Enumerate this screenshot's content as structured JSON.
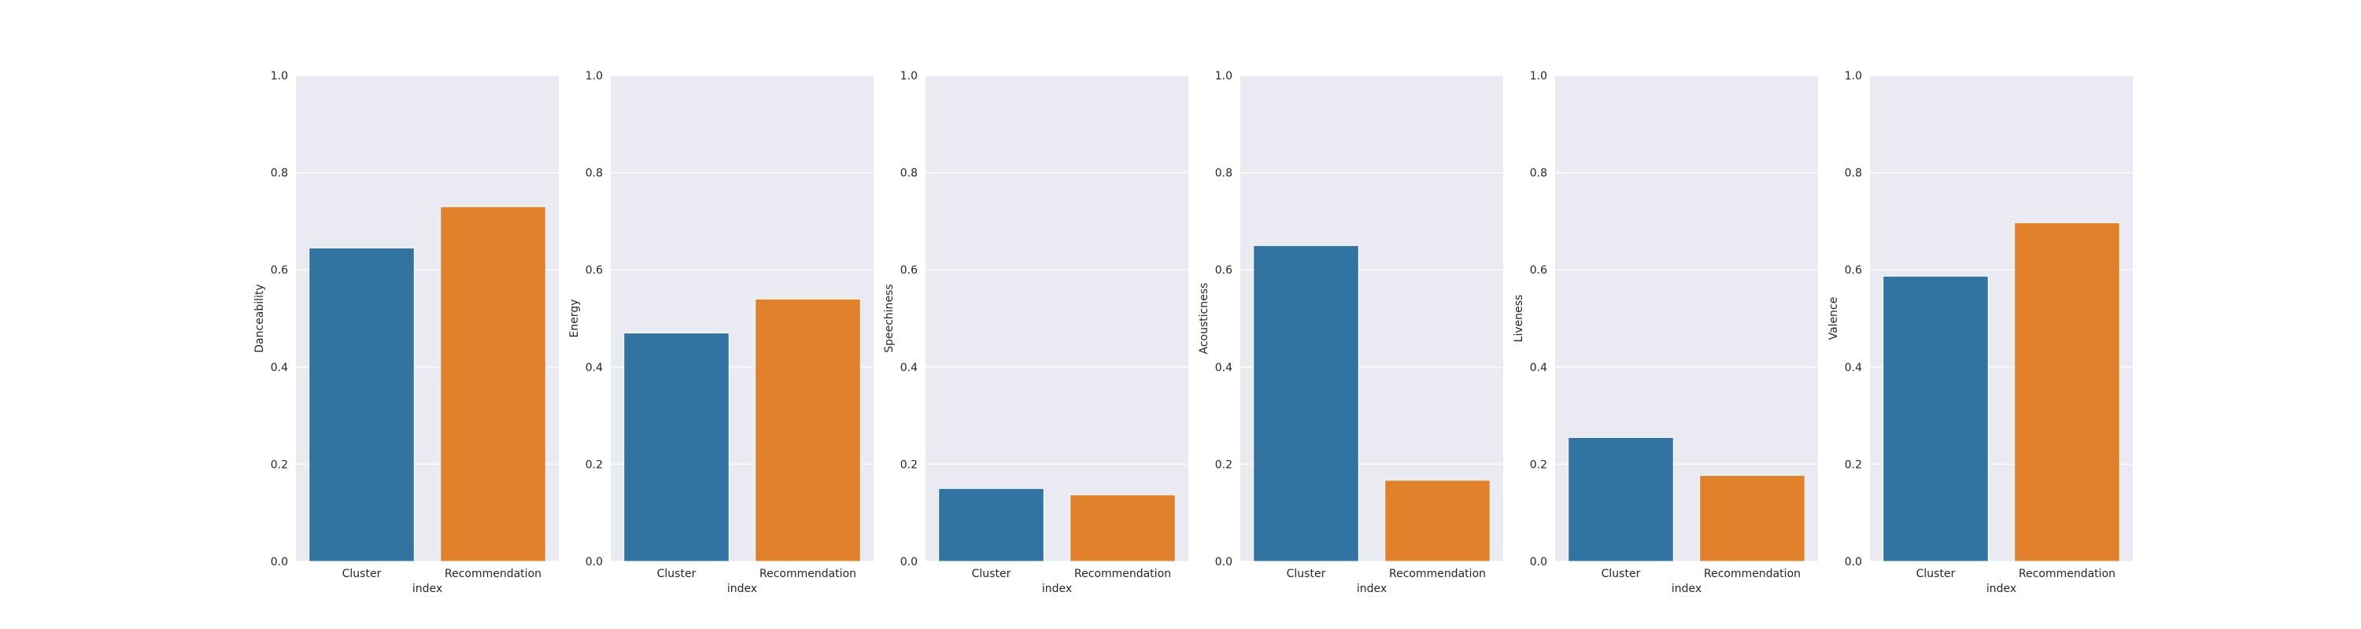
{
  "figure": {
    "background": "#ffffff",
    "axes_background": "#eaeaf2",
    "grid_color": "#ffffff"
  },
  "chart_data": [
    {
      "type": "bar",
      "categories": [
        "Cluster",
        "Recommendation"
      ],
      "values": [
        0.645,
        0.73
      ],
      "colors": [
        "#3274a1",
        "#e1812c"
      ],
      "xlabel": "index",
      "ylabel": "Danceability",
      "ylim": [
        0,
        1
      ],
      "yticks": [
        "0.0",
        "0.2",
        "0.4",
        "0.6",
        "0.8",
        "1.0"
      ],
      "grid": true
    },
    {
      "type": "bar",
      "categories": [
        "Cluster",
        "Recommendation"
      ],
      "values": [
        0.47,
        0.54
      ],
      "colors": [
        "#3274a1",
        "#e1812c"
      ],
      "xlabel": "index",
      "ylabel": "Energy",
      "ylim": [
        0,
        1
      ],
      "yticks": [
        "0.0",
        "0.2",
        "0.4",
        "0.6",
        "0.8",
        "1.0"
      ],
      "grid": true
    },
    {
      "type": "bar",
      "categories": [
        "Cluster",
        "Recommendation"
      ],
      "values": [
        0.15,
        0.137
      ],
      "colors": [
        "#3274a1",
        "#e1812c"
      ],
      "xlabel": "index",
      "ylabel": "Speechiness",
      "ylim": [
        0,
        1
      ],
      "yticks": [
        "0.0",
        "0.2",
        "0.4",
        "0.6",
        "0.8",
        "1.0"
      ],
      "grid": true
    },
    {
      "type": "bar",
      "categories": [
        "Cluster",
        "Recommendation"
      ],
      "values": [
        0.65,
        0.167
      ],
      "colors": [
        "#3274a1",
        "#e1812c"
      ],
      "xlabel": "index",
      "ylabel": "Acousticness",
      "ylim": [
        0,
        1
      ],
      "yticks": [
        "0.0",
        "0.2",
        "0.4",
        "0.6",
        "0.8",
        "1.0"
      ],
      "grid": true
    },
    {
      "type": "bar",
      "categories": [
        "Cluster",
        "Recommendation"
      ],
      "values": [
        0.255,
        0.177
      ],
      "colors": [
        "#3274a1",
        "#e1812c"
      ],
      "xlabel": "index",
      "ylabel": "Liveness",
      "ylim": [
        0,
        1
      ],
      "yticks": [
        "0.0",
        "0.2",
        "0.4",
        "0.6",
        "0.8",
        "1.0"
      ],
      "grid": true
    },
    {
      "type": "bar",
      "categories": [
        "Cluster",
        "Recommendation"
      ],
      "values": [
        0.587,
        0.697
      ],
      "colors": [
        "#3274a1",
        "#e1812c"
      ],
      "xlabel": "index",
      "ylabel": "Valence",
      "ylim": [
        0,
        1
      ],
      "yticks": [
        "0.0",
        "0.2",
        "0.4",
        "0.6",
        "0.8",
        "1.0"
      ],
      "grid": true
    }
  ]
}
